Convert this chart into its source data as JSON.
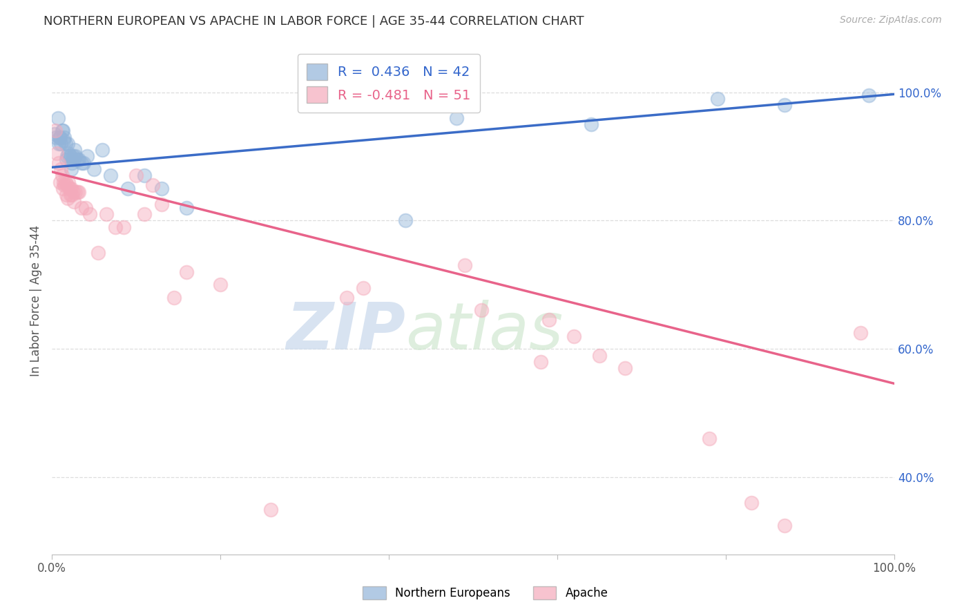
{
  "title": "NORTHERN EUROPEAN VS APACHE IN LABOR FORCE | AGE 35-44 CORRELATION CHART",
  "source": "Source: ZipAtlas.com",
  "ylabel": "In Labor Force | Age 35-44",
  "xlim": [
    0,
    1.0
  ],
  "ylim": [
    0.28,
    1.07
  ],
  "yticks_right": [
    1.0,
    0.8,
    0.6,
    0.4
  ],
  "ytick_right_labels": [
    "100.0%",
    "80.0%",
    "60.0%",
    "40.0%"
  ],
  "legend_blue_text": "R =  0.436   N = 42",
  "legend_pink_text": "R = -0.481   N = 51",
  "blue_color": "#92B4D9",
  "pink_color": "#F4AABB",
  "blue_line_color": "#3B6CC7",
  "pink_line_color": "#E8638A",
  "watermark_zip": "ZIP",
  "watermark_atlas": "atlas",
  "blue_scatter_x": [
    0.003,
    0.005,
    0.007,
    0.008,
    0.009,
    0.01,
    0.011,
    0.012,
    0.013,
    0.014,
    0.015,
    0.016,
    0.017,
    0.018,
    0.019,
    0.02,
    0.021,
    0.022,
    0.023,
    0.024,
    0.025,
    0.026,
    0.027,
    0.028,
    0.03,
    0.032,
    0.035,
    0.038,
    0.042,
    0.05,
    0.06,
    0.07,
    0.09,
    0.11,
    0.13,
    0.16,
    0.42,
    0.48,
    0.64,
    0.79,
    0.87,
    0.97
  ],
  "blue_scatter_y": [
    0.935,
    0.93,
    0.96,
    0.92,
    0.93,
    0.93,
    0.92,
    0.94,
    0.94,
    0.925,
    0.93,
    0.92,
    0.895,
    0.9,
    0.92,
    0.905,
    0.9,
    0.9,
    0.88,
    0.89,
    0.9,
    0.895,
    0.91,
    0.9,
    0.895,
    0.895,
    0.89,
    0.89,
    0.9,
    0.88,
    0.91,
    0.87,
    0.85,
    0.87,
    0.85,
    0.82,
    0.8,
    0.96,
    0.95,
    0.99,
    0.98,
    0.995
  ],
  "pink_scatter_x": [
    0.004,
    0.006,
    0.008,
    0.01,
    0.011,
    0.012,
    0.013,
    0.014,
    0.015,
    0.016,
    0.017,
    0.018,
    0.019,
    0.02,
    0.021,
    0.022,
    0.023,
    0.024,
    0.025,
    0.026,
    0.028,
    0.03,
    0.032,
    0.035,
    0.04,
    0.045,
    0.055,
    0.065,
    0.075,
    0.085,
    0.1,
    0.11,
    0.12,
    0.13,
    0.145,
    0.16,
    0.2,
    0.26,
    0.35,
    0.37,
    0.49,
    0.51,
    0.58,
    0.59,
    0.62,
    0.65,
    0.68,
    0.78,
    0.83,
    0.87,
    0.96
  ],
  "pink_scatter_y": [
    0.94,
    0.905,
    0.89,
    0.86,
    0.88,
    0.87,
    0.85,
    0.86,
    0.855,
    0.86,
    0.84,
    0.855,
    0.835,
    0.86,
    0.85,
    0.84,
    0.85,
    0.84,
    0.845,
    0.83,
    0.845,
    0.845,
    0.845,
    0.82,
    0.82,
    0.81,
    0.75,
    0.81,
    0.79,
    0.79,
    0.87,
    0.81,
    0.855,
    0.825,
    0.68,
    0.72,
    0.7,
    0.35,
    0.68,
    0.695,
    0.73,
    0.66,
    0.58,
    0.645,
    0.62,
    0.59,
    0.57,
    0.46,
    0.36,
    0.325,
    0.625
  ],
  "blue_trend_x": [
    0.0,
    1.0
  ],
  "blue_trend_y": [
    0.883,
    0.997
  ],
  "pink_trend_x": [
    0.0,
    1.0
  ],
  "pink_trend_y": [
    0.876,
    0.546
  ]
}
